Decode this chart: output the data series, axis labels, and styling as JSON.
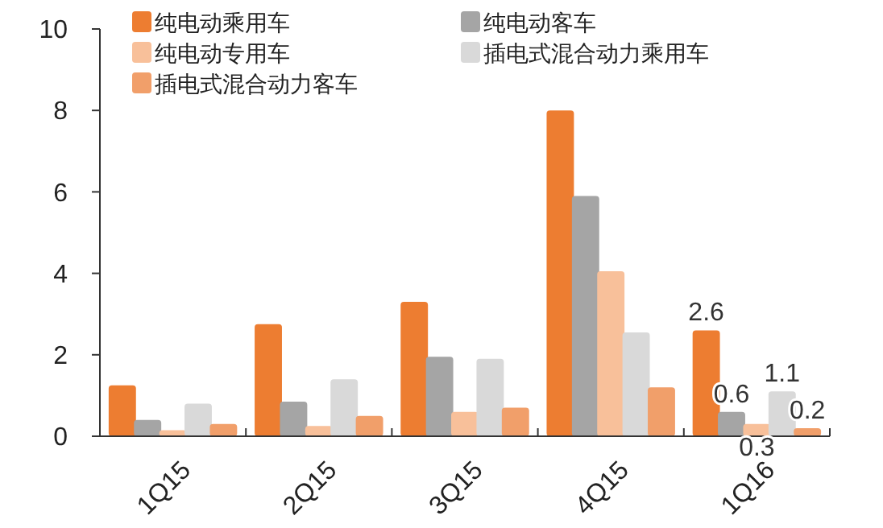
{
  "chart_data": {
    "type": "bar",
    "categories": [
      "1Q15",
      "2Q15",
      "3Q15",
      "4Q15",
      "1Q16"
    ],
    "series": [
      {
        "name": "纯电动乘用车",
        "color": "#ed7d31",
        "values": [
          1.25,
          2.75,
          3.3,
          8.0,
          2.6
        ],
        "value_labels": [
          null,
          null,
          null,
          null,
          "2.6"
        ]
      },
      {
        "name": "纯电动客车",
        "color": "#a5a5a5",
        "values": [
          0.4,
          0.85,
          1.95,
          5.9,
          0.6
        ],
        "value_labels": [
          null,
          null,
          null,
          null,
          "0.6"
        ]
      },
      {
        "name": "纯电动专用车",
        "color": "#f8c09a",
        "values": [
          0.15,
          0.25,
          0.6,
          4.05,
          0.3
        ],
        "value_labels": [
          null,
          null,
          null,
          null,
          "0.3"
        ]
      },
      {
        "name": "插电式混合动力乘用车",
        "color": "#d9d9d9",
        "values": [
          0.8,
          1.4,
          1.9,
          2.55,
          1.1
        ],
        "value_labels": [
          null,
          null,
          null,
          null,
          "1.1"
        ]
      },
      {
        "name": "插电式混合动力客车",
        "color": "#f19f6a",
        "values": [
          0.3,
          0.5,
          0.7,
          1.2,
          0.2
        ],
        "value_labels": [
          null,
          null,
          null,
          null,
          "0.2"
        ]
      }
    ],
    "ylim": [
      0,
      10
    ],
    "yticks": [
      0,
      2,
      4,
      6,
      8,
      10
    ],
    "grid": false,
    "legend": "top left"
  }
}
